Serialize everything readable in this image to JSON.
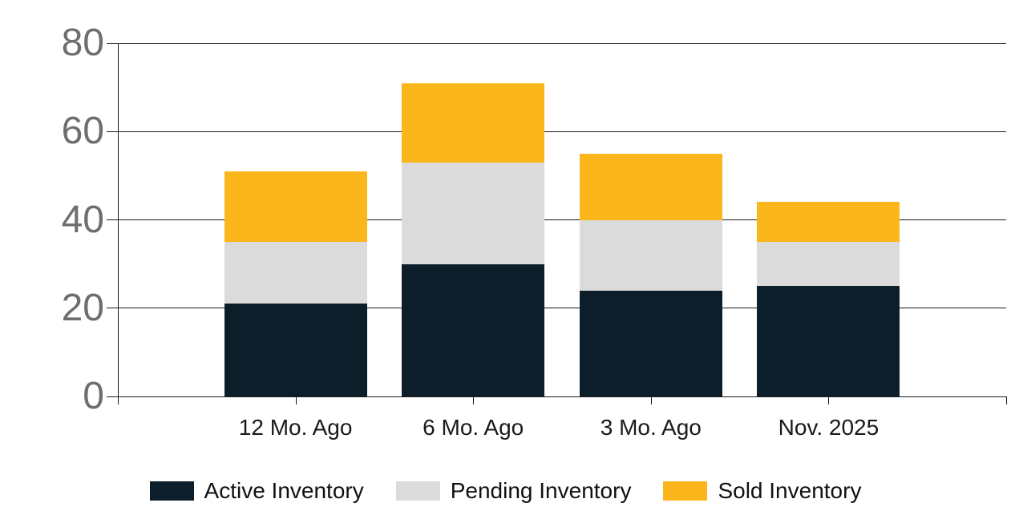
{
  "chart_data": {
    "type": "bar",
    "stacked": true,
    "title": "",
    "xlabel": "",
    "ylabel": "",
    "categories": [
      "12 Mo. Ago",
      "6 Mo. Ago",
      "3 Mo. Ago",
      "Nov. 2025"
    ],
    "series": [
      {
        "name": "Active Inventory",
        "color": "#0D1E2B",
        "values": [
          21,
          30,
          24,
          25
        ]
      },
      {
        "name": "Pending Inventory",
        "color": "#DBDBDB",
        "values": [
          14,
          23,
          16,
          10
        ]
      },
      {
        "name": "Sold Inventory",
        "color": "#FBB61B",
        "values": [
          16,
          18,
          15,
          9
        ]
      }
    ],
    "stack_totals": [
      51,
      71,
      55,
      44
    ],
    "y_axis": {
      "min": 0,
      "max": 80,
      "tick_interval": 20,
      "ticks": [
        0,
        20,
        40,
        60,
        80
      ],
      "label_color": "#6E6E6E"
    },
    "grid": true,
    "gridline_color": "#1A1A1A",
    "axis_color": "#1A1A1A",
    "x_label_color": "#1A1A1A",
    "background_color": "#FFFFFF",
    "legend_position": "bottom"
  }
}
